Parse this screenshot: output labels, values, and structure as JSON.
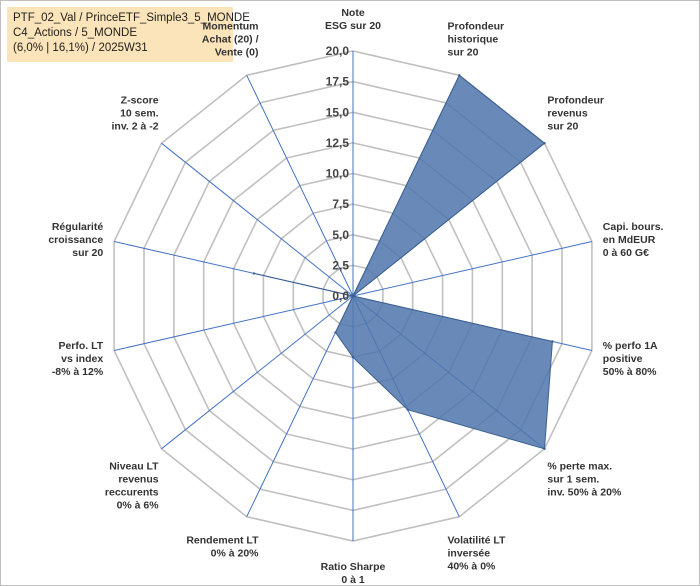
{
  "header": {
    "line1": "PTF_02_Val / PrinceETF_Simple3_5_MONDE",
    "line2": "C4_Actions / 5_MONDE",
    "line3": "(6,0% | 16,1%) / 2025W31"
  },
  "chart_data": {
    "type": "radar",
    "title": "",
    "rmin": 0,
    "rmax": 20,
    "ticks": [
      "0,0",
      "2,5",
      "5,0",
      "7,5",
      "10,0",
      "12,5",
      "15,0",
      "17,5",
      "20,0"
    ],
    "tick_values": [
      0,
      2.5,
      5,
      7.5,
      10,
      12.5,
      15,
      17.5,
      20
    ],
    "axes": [
      {
        "lines": [
          "Note",
          "ESG sur 20"
        ]
      },
      {
        "lines": [
          "Profondeur",
          "historique",
          "sur 20"
        ]
      },
      {
        "lines": [
          "Profondeur",
          "revenus",
          "sur 20"
        ]
      },
      {
        "lines": [
          "Capi. bours.",
          "en MdEUR",
          "0 à 60 G€"
        ]
      },
      {
        "lines": [
          "% perfo 1A",
          "positive",
          "50% à 80%"
        ]
      },
      {
        "lines": [
          "% perte max.",
          "sur 1 sem.",
          "inv. 50% à 20%"
        ]
      },
      {
        "lines": [
          "Volatilité LT",
          "inversée",
          "40% à 0%"
        ]
      },
      {
        "lines": [
          "Ratio Sharpe",
          "0 à 1"
        ]
      },
      {
        "lines": [
          "Rendement LT",
          "0% à 20%"
        ]
      },
      {
        "lines": [
          "Niveau LT",
          "revenus",
          "reccurents",
          "0% à 6%"
        ]
      },
      {
        "lines": [
          "Perfo. LT",
          "vs index",
          "-8% à 12%"
        ]
      },
      {
        "lines": [
          "Régularité",
          "croissance",
          "sur 20"
        ]
      },
      {
        "lines": [
          "Z-score",
          "10 sem.",
          "inv. 2 à -2"
        ]
      },
      {
        "lines": [
          "Momentum",
          "Achat (20) /",
          "Vente (0)"
        ]
      }
    ],
    "series": [
      {
        "values": [
          0,
          20,
          20,
          0,
          16.7,
          20,
          10.3,
          5,
          3.3,
          0,
          0,
          8.3,
          0,
          0
        ],
        "color": "#4f76ab"
      }
    ],
    "grid": true,
    "legend": "none",
    "colors": {
      "grid": "#c0c0c0",
      "spoke": "#4472c4",
      "fill": "#4f76ab",
      "outline": "#3b5f8f"
    }
  }
}
